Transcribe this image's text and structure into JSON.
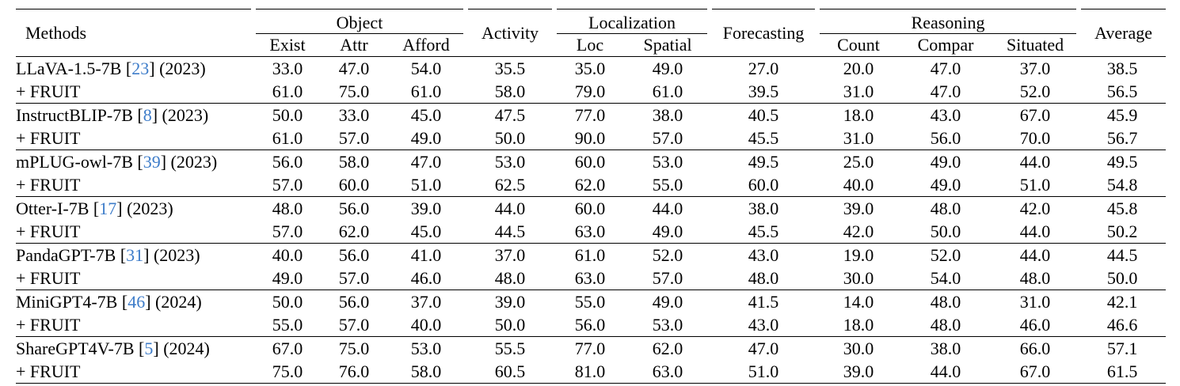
{
  "header": {
    "methods": "Methods",
    "object": "Object",
    "activity": "Activity",
    "localization": "Localization",
    "forecasting": "Forecasting",
    "reasoning": "Reasoning",
    "average": "Average",
    "sub": {
      "exist": "Exist",
      "attr": "Attr",
      "afford": "Afford",
      "loc": "Loc",
      "spatial": "Spatial",
      "count": "Count",
      "compar": "Compar",
      "situated": "Situated"
    }
  },
  "groups": [
    {
      "base": {
        "name": "LLaVA-1.5-7B",
        "cite": "23",
        "year": "(2023)",
        "values": [
          "33.0",
          "47.0",
          "54.0",
          "35.5",
          "35.0",
          "49.0",
          "27.0",
          "20.0",
          "47.0",
          "37.0",
          "38.5"
        ]
      },
      "fruit": {
        "name": "+ FRUIT",
        "values": [
          "61.0",
          "75.0",
          "61.0",
          "58.0",
          "79.0",
          "61.0",
          "39.5",
          "31.0",
          "47.0",
          "52.0",
          "56.5"
        ]
      }
    },
    {
      "base": {
        "name": "InstructBLIP-7B",
        "cite": "8",
        "year": "(2023)",
        "values": [
          "50.0",
          "33.0",
          "45.0",
          "47.5",
          "77.0",
          "38.0",
          "40.5",
          "18.0",
          "43.0",
          "67.0",
          "45.9"
        ]
      },
      "fruit": {
        "name": "+ FRUIT",
        "values": [
          "61.0",
          "57.0",
          "49.0",
          "50.0",
          "90.0",
          "57.0",
          "45.5",
          "31.0",
          "56.0",
          "70.0",
          "56.7"
        ]
      }
    },
    {
      "base": {
        "name": "mPLUG-owl-7B",
        "cite": "39",
        "year": "(2023)",
        "values": [
          "56.0",
          "58.0",
          "47.0",
          "53.0",
          "60.0",
          "53.0",
          "49.5",
          "25.0",
          "49.0",
          "44.0",
          "49.5"
        ]
      },
      "fruit": {
        "name": "+ FRUIT",
        "values": [
          "57.0",
          "60.0",
          "51.0",
          "62.5",
          "62.0",
          "55.0",
          "60.0",
          "40.0",
          "49.0",
          "51.0",
          "54.8"
        ]
      }
    },
    {
      "base": {
        "name": "Otter-I-7B",
        "cite": "17",
        "year": "(2023)",
        "values": [
          "48.0",
          "56.0",
          "39.0",
          "44.0",
          "60.0",
          "44.0",
          "38.0",
          "39.0",
          "48.0",
          "42.0",
          "45.8"
        ]
      },
      "fruit": {
        "name": "+ FRUIT",
        "values": [
          "57.0",
          "62.0",
          "45.0",
          "44.5",
          "63.0",
          "49.0",
          "45.5",
          "42.0",
          "50.0",
          "44.0",
          "50.2"
        ]
      }
    },
    {
      "base": {
        "name": "PandaGPT-7B",
        "cite": "31",
        "year": "(2023)",
        "values": [
          "40.0",
          "56.0",
          "41.0",
          "37.0",
          "61.0",
          "52.0",
          "43.0",
          "19.0",
          "52.0",
          "44.0",
          "44.5"
        ]
      },
      "fruit": {
        "name": "+ FRUIT",
        "values": [
          "49.0",
          "57.0",
          "46.0",
          "48.0",
          "63.0",
          "57.0",
          "48.0",
          "30.0",
          "54.0",
          "48.0",
          "50.0"
        ]
      }
    },
    {
      "base": {
        "name": "MiniGPT4-7B",
        "cite": "46",
        "year": "(2024)",
        "values": [
          "50.0",
          "56.0",
          "37.0",
          "39.0",
          "55.0",
          "49.0",
          "41.5",
          "14.0",
          "48.0",
          "31.0",
          "42.1"
        ]
      },
      "fruit": {
        "name": "+ FRUIT",
        "values": [
          "55.0",
          "57.0",
          "40.0",
          "50.0",
          "56.0",
          "53.0",
          "43.0",
          "18.0",
          "48.0",
          "46.0",
          "46.6"
        ]
      }
    },
    {
      "base": {
        "name": "ShareGPT4V-7B",
        "cite": "5",
        "year": "(2024)",
        "values": [
          "67.0",
          "75.0",
          "53.0",
          "55.5",
          "77.0",
          "62.0",
          "47.0",
          "30.0",
          "38.0",
          "66.0",
          "57.1"
        ]
      },
      "fruit": {
        "name": "+ FRUIT",
        "values": [
          "75.0",
          "76.0",
          "58.0",
          "60.5",
          "81.0",
          "63.0",
          "51.0",
          "39.0",
          "44.0",
          "67.0",
          "61.5"
        ]
      }
    }
  ]
}
